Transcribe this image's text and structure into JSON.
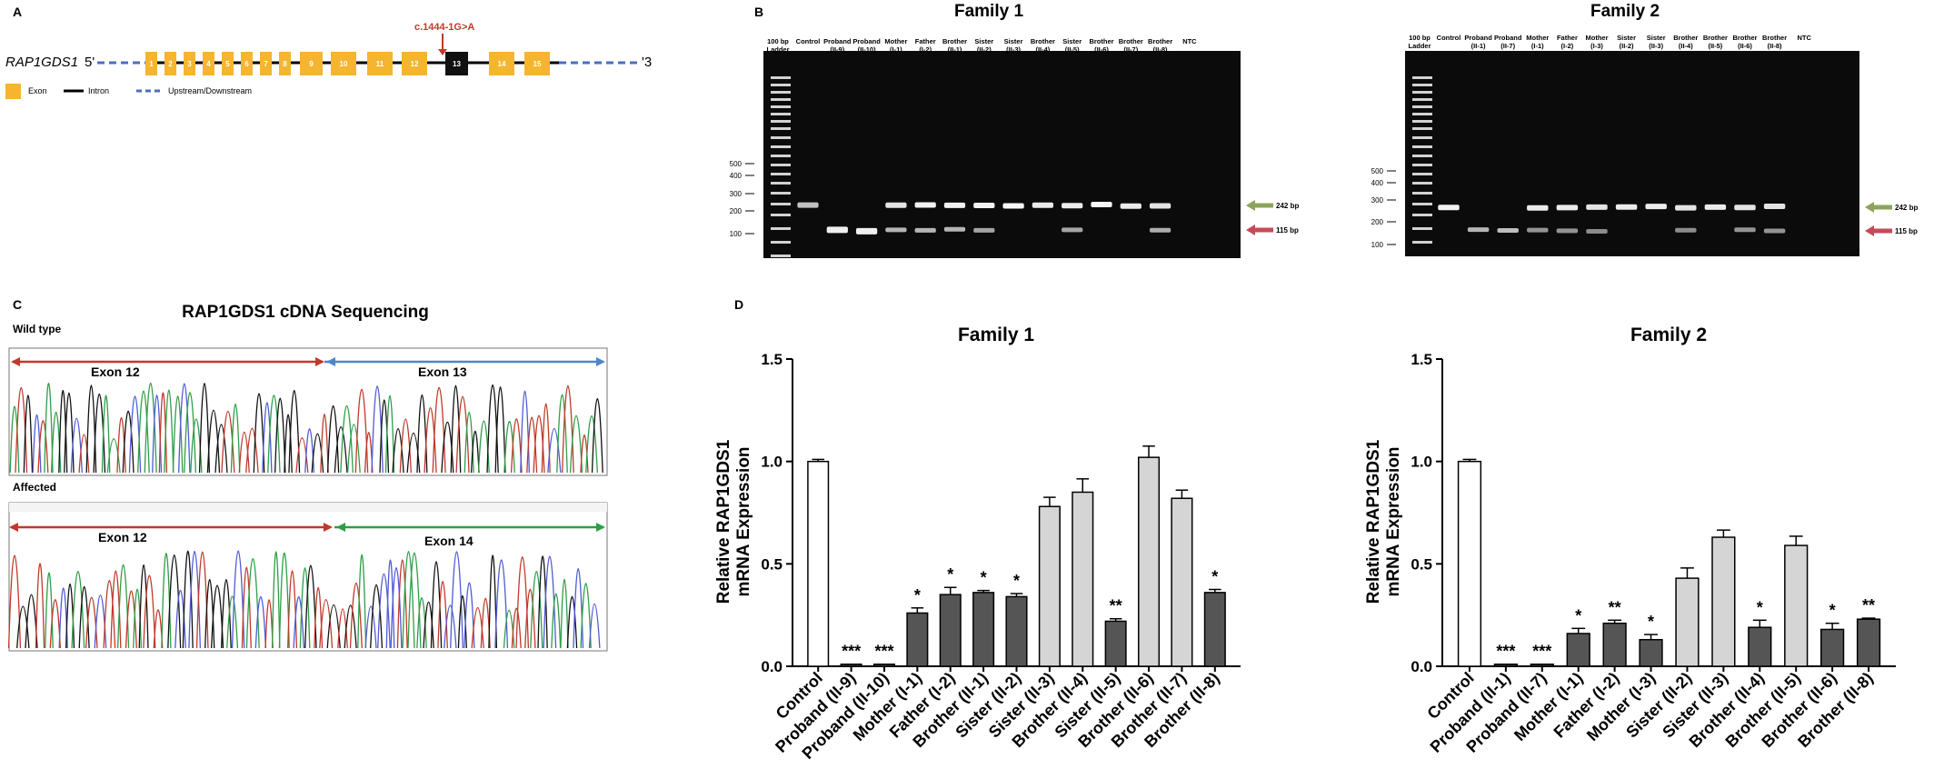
{
  "figure": {
    "panel_a": {
      "letter": "A",
      "gene": "RAP1GDS1",
      "five_prime": "5'",
      "three_prime": "'3",
      "mutation": "c.1444-1G>A",
      "exons": [
        "1",
        "2",
        "3",
        "4",
        "5",
        "6",
        "7",
        "8",
        "9",
        "10",
        "11",
        "12",
        "13",
        "14",
        "15"
      ],
      "highlight_exon": "13",
      "legend": [
        {
          "label": "Exon",
          "kind": "exon",
          "color": "#f5b52e"
        },
        {
          "label": "Intron",
          "kind": "intron",
          "color": "#000000"
        },
        {
          "label": "Upstream/Downstream",
          "kind": "updown",
          "color": "#4a6fc0"
        }
      ]
    },
    "panel_b": {
      "letter": "B",
      "ladder_label": "100 bp Ladder",
      "size_marks": [
        "500",
        "400",
        "300",
        "200",
        "100"
      ],
      "band_labels": [
        "242 bp",
        "115 bp"
      ],
      "gels": [
        {
          "title": "Family 1",
          "lanes": [
            {
              "name": "Control",
              "sub": "",
              "b242": 0.55,
              "b115": 0
            },
            {
              "name": "Proband",
              "sub": "(II-9)",
              "b242": 0,
              "b115": 0.9
            },
            {
              "name": "Proband",
              "sub": "(II-10)",
              "b242": 0,
              "b115": 0.9
            },
            {
              "name": "Mother",
              "sub": "(I-1)",
              "b242": 0.8,
              "b115": 0.55
            },
            {
              "name": "Father",
              "sub": "(I-2)",
              "b242": 0.9,
              "b115": 0.55
            },
            {
              "name": "Brother",
              "sub": "(II-1)",
              "b242": 0.9,
              "b115": 0.55
            },
            {
              "name": "Sister",
              "sub": "(II-2)",
              "b242": 0.9,
              "b115": 0.45
            },
            {
              "name": "Sister",
              "sub": "(II-3)",
              "b242": 0.95,
              "b115": 0
            },
            {
              "name": "Brother",
              "sub": "(II-4)",
              "b242": 0.85,
              "b115": 0
            },
            {
              "name": "Sister",
              "sub": "(II-5)",
              "b242": 0.85,
              "b115": 0.45
            },
            {
              "name": "Brother",
              "sub": "(II-6)",
              "b242": 0.95,
              "b115": 0
            },
            {
              "name": "Brother",
              "sub": "(II-7)",
              "b242": 0.85,
              "b115": 0
            },
            {
              "name": "Brother",
              "sub": "(II-8)",
              "b242": 0.8,
              "b115": 0.5
            },
            {
              "name": "NTC",
              "sub": "",
              "b242": 0,
              "b115": 0
            }
          ]
        },
        {
          "title": "Family 2",
          "lanes": [
            {
              "name": "Control",
              "sub": "",
              "b242": 0.9,
              "b115": 0
            },
            {
              "name": "Proband",
              "sub": "(II-1)",
              "b242": 0,
              "b115": 0.55
            },
            {
              "name": "Proband",
              "sub": "(II-7)",
              "b242": 0,
              "b115": 0.6
            },
            {
              "name": "Mother",
              "sub": "(I-1)",
              "b242": 0.85,
              "b115": 0.35
            },
            {
              "name": "Father",
              "sub": "(I-2)",
              "b242": 0.85,
              "b115": 0.35
            },
            {
              "name": "Mother",
              "sub": "(I-3)",
              "b242": 0.8,
              "b115": 0.3
            },
            {
              "name": "Sister",
              "sub": "(II-2)",
              "b242": 0.85,
              "b115": 0
            },
            {
              "name": "Sister",
              "sub": "(II-3)",
              "b242": 0.85,
              "b115": 0
            },
            {
              "name": "Brother",
              "sub": "(II-4)",
              "b242": 0.8,
              "b115": 0.3
            },
            {
              "name": "Brother",
              "sub": "(II-5)",
              "b242": 0.85,
              "b115": 0
            },
            {
              "name": "Brother",
              "sub": "(II-6)",
              "b242": 0.8,
              "b115": 0.35
            },
            {
              "name": "Brother",
              "sub": "(II-8)",
              "b242": 0.8,
              "b115": 0.35
            },
            {
              "name": "NTC",
              "sub": "",
              "b242": 0,
              "b115": 0
            }
          ]
        }
      ]
    },
    "panel_c": {
      "letter": "C",
      "title": "RAP1GDS1 cDNA Sequencing",
      "tracks": [
        {
          "label": "Wild type",
          "left_exon": "Exon 12",
          "right_exon": "Exon 13",
          "right_color": "#4f86c6"
        },
        {
          "label": "Affected",
          "left_exon": "Exon 12",
          "right_exon": "Exon 14",
          "right_color": "#2e9e47"
        }
      ]
    },
    "panel_d_letter": "D"
  },
  "chart_data": [
    {
      "type": "bar",
      "title": "Family 1",
      "ylabel": "Relative RAP1GDS1 mRNA Expression",
      "ylim": [
        0,
        1.5
      ],
      "yticks": [
        "0.0",
        "0.5",
        "1.0",
        "1.5"
      ],
      "categories": [
        "Control",
        "Proband (II-9)",
        "Proband (II-10)",
        "Mother (I-1)",
        "Father (I-2)",
        "Brother (II-1)",
        "Sister (II-2)",
        "Sister (II-3)",
        "Brother (II-4)",
        "Sister (II-5)",
        "Brother (II-6)",
        "Brother (II-7)",
        "Brother (II-8)"
      ],
      "values": [
        1.0,
        0.01,
        0.01,
        0.26,
        0.35,
        0.36,
        0.34,
        0.78,
        0.85,
        0.22,
        1.02,
        0.82,
        0.36
      ],
      "errors": [
        0.01,
        0.0,
        0.0,
        0.025,
        0.035,
        0.01,
        0.015,
        0.045,
        0.065,
        0.012,
        0.055,
        0.04,
        0.015
      ],
      "fills": [
        "#ffffff",
        "#555555",
        "#555555",
        "#555555",
        "#555555",
        "#555555",
        "#555555",
        "#d5d5d5",
        "#d5d5d5",
        "#555555",
        "#d5d5d5",
        "#d5d5d5",
        "#555555"
      ],
      "significance": [
        "",
        "***",
        "***",
        "*",
        "*",
        "*",
        "*",
        "",
        "",
        "**",
        "",
        "",
        "*"
      ]
    },
    {
      "type": "bar",
      "title": "Family 2",
      "ylabel": "Relative RAP1GDS1 mRNA Expression",
      "ylim": [
        0,
        1.5
      ],
      "yticks": [
        "0.0",
        "0.5",
        "1.0",
        "1.5"
      ],
      "categories": [
        "Control",
        "Proband (II-1)",
        "Proband (II-7)",
        "Mother (I-1)",
        "Father (I-2)",
        "Mother (I-3)",
        "Sister (II-2)",
        "Sister (II-3)",
        "Brother (II-4)",
        "Brother (II-5)",
        "Brother (II-6)",
        "Brother (II-8)"
      ],
      "values": [
        1.0,
        0.01,
        0.01,
        0.16,
        0.21,
        0.13,
        0.43,
        0.63,
        0.19,
        0.59,
        0.18,
        0.23
      ],
      "errors": [
        0.01,
        0.0,
        0.0,
        0.025,
        0.015,
        0.025,
        0.05,
        0.035,
        0.035,
        0.045,
        0.03,
        0.005
      ],
      "fills": [
        "#ffffff",
        "#555555",
        "#555555",
        "#555555",
        "#555555",
        "#555555",
        "#d5d5d5",
        "#d5d5d5",
        "#555555",
        "#d5d5d5",
        "#555555",
        "#555555"
      ],
      "significance": [
        "",
        "***",
        "***",
        "*",
        "**",
        "*",
        "",
        "",
        "*",
        "",
        "*",
        "**"
      ]
    }
  ]
}
